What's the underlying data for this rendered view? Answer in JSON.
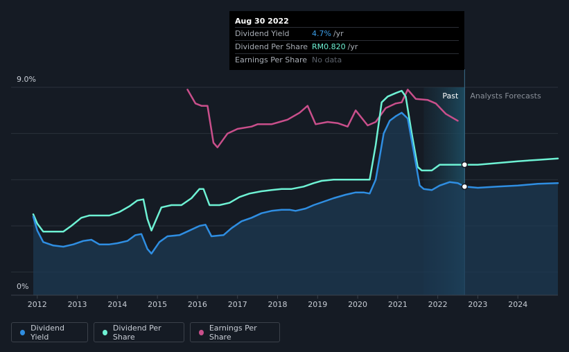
{
  "tooltip": {
    "date": "Aug 30 2022",
    "rows": [
      {
        "label": "Dividend Yield",
        "value": "4.7%",
        "unit": "/yr"
      },
      {
        "label": "Dividend Per Share",
        "value": "RM0.820",
        "unit": "/yr"
      },
      {
        "label": "Earnings Per Share",
        "value": "No data",
        "unit": ""
      }
    ]
  },
  "legend": [
    {
      "label": "Dividend Yield",
      "color": "#2f8ee2"
    },
    {
      "label": "Dividend Per Share",
      "color": "#6ef2d4"
    },
    {
      "label": "Earnings Per Share",
      "color": "#c94f8b"
    }
  ],
  "chart_data": {
    "type": "line",
    "y_top_label": "9.0%",
    "y_bottom_label": "0%",
    "ylim": [
      0,
      9.0
    ],
    "xlim": [
      2011.9,
      2025.0
    ],
    "x_ticks": [
      "2012",
      "2013",
      "2014",
      "2015",
      "2016",
      "2017",
      "2018",
      "2019",
      "2020",
      "2021",
      "2022",
      "2023",
      "2024"
    ],
    "past_label": "Past",
    "forecast_label": "Analysts Forecasts",
    "forecast_start": 2022.67,
    "forecast_shade_start": 2021.65,
    "colors": {
      "dividend_yield": "#2f8ee2",
      "dividend_per_share": "#6ef2d4",
      "earnings_per_share": "#c94f8b"
    },
    "series": [
      {
        "name": "Dividend Yield",
        "points": [
          [
            2011.9,
            3.4
          ],
          [
            2012.0,
            2.8
          ],
          [
            2012.15,
            2.3
          ],
          [
            2012.4,
            2.15
          ],
          [
            2012.65,
            2.1
          ],
          [
            2012.9,
            2.2
          ],
          [
            2013.15,
            2.35
          ],
          [
            2013.35,
            2.4
          ],
          [
            2013.55,
            2.2
          ],
          [
            2013.8,
            2.2
          ],
          [
            2014.0,
            2.25
          ],
          [
            2014.25,
            2.35
          ],
          [
            2014.45,
            2.6
          ],
          [
            2014.6,
            2.65
          ],
          [
            2014.75,
            2.0
          ],
          [
            2014.85,
            1.8
          ],
          [
            2015.05,
            2.3
          ],
          [
            2015.25,
            2.55
          ],
          [
            2015.55,
            2.6
          ],
          [
            2015.8,
            2.8
          ],
          [
            2016.05,
            3.0
          ],
          [
            2016.2,
            3.05
          ],
          [
            2016.35,
            2.55
          ],
          [
            2016.65,
            2.6
          ],
          [
            2016.85,
            2.9
          ],
          [
            2017.1,
            3.2
          ],
          [
            2017.35,
            3.35
          ],
          [
            2017.6,
            3.55
          ],
          [
            2017.85,
            3.65
          ],
          [
            2018.1,
            3.7
          ],
          [
            2018.3,
            3.7
          ],
          [
            2018.45,
            3.65
          ],
          [
            2018.7,
            3.75
          ],
          [
            2018.9,
            3.9
          ],
          [
            2019.15,
            4.05
          ],
          [
            2019.4,
            4.2
          ],
          [
            2019.7,
            4.35
          ],
          [
            2019.95,
            4.45
          ],
          [
            2020.15,
            4.45
          ],
          [
            2020.3,
            4.4
          ],
          [
            2020.45,
            5.0
          ],
          [
            2020.55,
            6.0
          ],
          [
            2020.65,
            7.0
          ],
          [
            2020.8,
            7.55
          ],
          [
            2020.95,
            7.75
          ],
          [
            2021.1,
            7.9
          ],
          [
            2021.25,
            7.65
          ],
          [
            2021.4,
            6.2
          ],
          [
            2021.55,
            4.75
          ],
          [
            2021.65,
            4.6
          ],
          [
            2021.85,
            4.55
          ],
          [
            2022.05,
            4.75
          ],
          [
            2022.3,
            4.9
          ],
          [
            2022.5,
            4.85
          ],
          [
            2022.67,
            4.7
          ],
          [
            2023.0,
            4.65
          ],
          [
            2023.5,
            4.7
          ],
          [
            2024.0,
            4.75
          ],
          [
            2024.5,
            4.82
          ],
          [
            2025.0,
            4.85
          ]
        ]
      },
      {
        "name": "Dividend Per Share",
        "points": [
          [
            2011.9,
            3.5
          ],
          [
            2012.0,
            3.1
          ],
          [
            2012.15,
            2.75
          ],
          [
            2012.4,
            2.75
          ],
          [
            2012.65,
            2.75
          ],
          [
            2012.85,
            3.0
          ],
          [
            2013.1,
            3.35
          ],
          [
            2013.3,
            3.45
          ],
          [
            2013.55,
            3.45
          ],
          [
            2013.8,
            3.45
          ],
          [
            2014.05,
            3.6
          ],
          [
            2014.3,
            3.85
          ],
          [
            2014.5,
            4.1
          ],
          [
            2014.65,
            4.15
          ],
          [
            2014.75,
            3.3
          ],
          [
            2014.85,
            2.8
          ],
          [
            2015.1,
            3.8
          ],
          [
            2015.35,
            3.9
          ],
          [
            2015.6,
            3.9
          ],
          [
            2015.85,
            4.2
          ],
          [
            2016.05,
            4.6
          ],
          [
            2016.15,
            4.6
          ],
          [
            2016.3,
            3.9
          ],
          [
            2016.55,
            3.9
          ],
          [
            2016.8,
            4.0
          ],
          [
            2017.05,
            4.25
          ],
          [
            2017.3,
            4.4
          ],
          [
            2017.6,
            4.5
          ],
          [
            2017.85,
            4.55
          ],
          [
            2018.1,
            4.6
          ],
          [
            2018.35,
            4.6
          ],
          [
            2018.65,
            4.7
          ],
          [
            2018.9,
            4.85
          ],
          [
            2019.1,
            4.95
          ],
          [
            2019.4,
            5.0
          ],
          [
            2019.7,
            5.0
          ],
          [
            2019.95,
            5.0
          ],
          [
            2020.25,
            5.0
          ],
          [
            2020.3,
            5.0
          ],
          [
            2020.45,
            6.5
          ],
          [
            2020.6,
            8.35
          ],
          [
            2020.75,
            8.6
          ],
          [
            2020.95,
            8.75
          ],
          [
            2021.1,
            8.85
          ],
          [
            2021.2,
            8.6
          ],
          [
            2021.35,
            7.0
          ],
          [
            2021.5,
            5.55
          ],
          [
            2021.6,
            5.4
          ],
          [
            2021.85,
            5.4
          ],
          [
            2022.05,
            5.65
          ],
          [
            2022.35,
            5.65
          ],
          [
            2022.67,
            5.65
          ],
          [
            2023.0,
            5.65
          ],
          [
            2023.5,
            5.72
          ],
          [
            2024.0,
            5.8
          ],
          [
            2024.5,
            5.86
          ],
          [
            2025.0,
            5.92
          ]
        ]
      },
      {
        "name": "Earnings Per Share",
        "points": [
          [
            2015.75,
            8.9
          ],
          [
            2015.95,
            8.3
          ],
          [
            2016.1,
            8.2
          ],
          [
            2016.25,
            8.2
          ],
          [
            2016.4,
            6.6
          ],
          [
            2016.5,
            6.4
          ],
          [
            2016.75,
            7.0
          ],
          [
            2017.0,
            7.2
          ],
          [
            2017.35,
            7.3
          ],
          [
            2017.5,
            7.4
          ],
          [
            2017.85,
            7.4
          ],
          [
            2018.05,
            7.5
          ],
          [
            2018.25,
            7.6
          ],
          [
            2018.55,
            7.9
          ],
          [
            2018.75,
            8.2
          ],
          [
            2018.95,
            7.4
          ],
          [
            2019.25,
            7.5
          ],
          [
            2019.5,
            7.45
          ],
          [
            2019.75,
            7.3
          ],
          [
            2019.95,
            8.0
          ],
          [
            2020.25,
            7.35
          ],
          [
            2020.45,
            7.5
          ],
          [
            2020.7,
            8.1
          ],
          [
            2020.95,
            8.3
          ],
          [
            2021.1,
            8.35
          ],
          [
            2021.25,
            8.9
          ],
          [
            2021.45,
            8.5
          ],
          [
            2021.75,
            8.45
          ],
          [
            2021.95,
            8.3
          ],
          [
            2022.2,
            7.85
          ],
          [
            2022.5,
            7.55
          ]
        ]
      }
    ],
    "markers": [
      {
        "series": "Dividend Per Share",
        "x": 2022.67,
        "y": 5.65
      },
      {
        "series": "Dividend Yield",
        "x": 2022.67,
        "y": 4.7
      }
    ]
  }
}
